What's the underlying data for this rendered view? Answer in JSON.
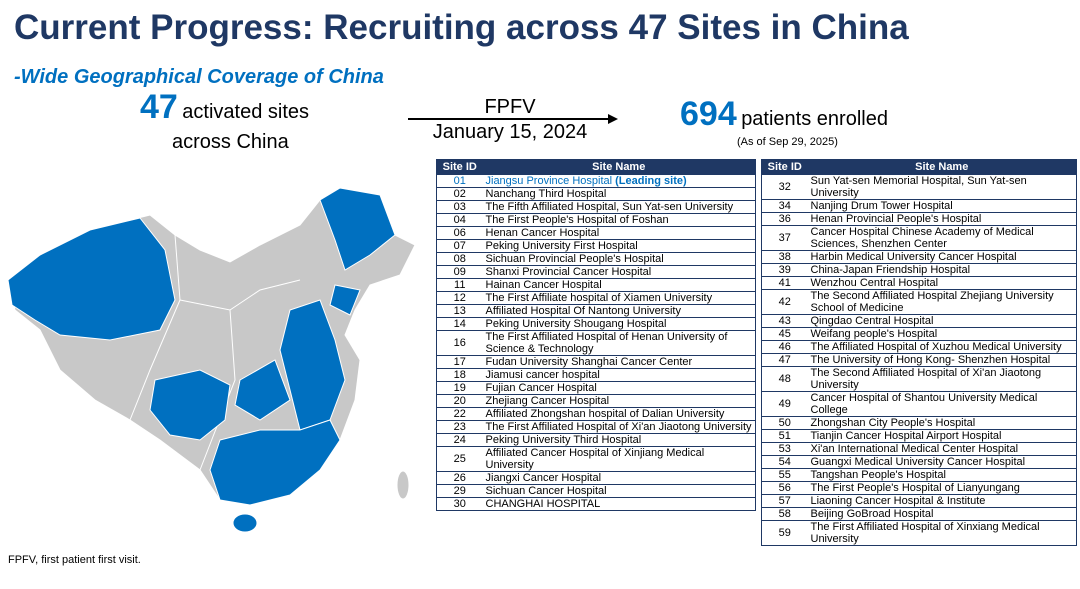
{
  "title": "Current Progress: Recruiting across 47 Sites in China",
  "subtitle": "-Wide Geographical Coverage of China",
  "sites": {
    "count": 47,
    "label": "activated sites",
    "sub": "across China"
  },
  "milestone": {
    "label": "FPFV",
    "date": "January 15, 2024"
  },
  "enrollment": {
    "count": 694,
    "label": "patients enrolled",
    "as_of": "(As of Sep 29, 2025)"
  },
  "tables": [
    {
      "columns": [
        "Site ID",
        "Site Name"
      ],
      "rows": [
        {
          "id": "01",
          "name": "Jiangsu Province Hospital",
          "note": "(Leading site)"
        },
        {
          "id": "02",
          "name": "Nanchang Third Hospital"
        },
        {
          "id": "03",
          "name": "The Fifth Affiliated Hospital, Sun Yat-sen University"
        },
        {
          "id": "04",
          "name": "The First People's Hospital of Foshan"
        },
        {
          "id": "06",
          "name": "Henan Cancer Hospital"
        },
        {
          "id": "07",
          "name": "Peking University First Hospital"
        },
        {
          "id": "08",
          "name": "Sichuan Provincial People's Hospital"
        },
        {
          "id": "09",
          "name": "Shanxi Provincial Cancer Hospital"
        },
        {
          "id": "11",
          "name": "Hainan Cancer Hospital"
        },
        {
          "id": "12",
          "name": "The First Affiliate hospital of Xiamen University"
        },
        {
          "id": "13",
          "name": "Affiliated Hospital Of Nantong University"
        },
        {
          "id": "14",
          "name": "Peking University Shougang Hospital"
        },
        {
          "id": "16",
          "name": "The First Affiliated Hospital of Henan University of Science & Technology"
        },
        {
          "id": "17",
          "name": "Fudan University Shanghai Cancer Center"
        },
        {
          "id": "18",
          "name": "Jiamusi cancer hospital"
        },
        {
          "id": "19",
          "name": "Fujian Cancer Hospital"
        },
        {
          "id": "20",
          "name": "Zhejiang Cancer Hospital"
        },
        {
          "id": "22",
          "name": "Affiliated Zhongshan hospital of Dalian University"
        },
        {
          "id": "23",
          "name": "The First Affiliated Hospital of Xi'an Jiaotong University"
        },
        {
          "id": "24",
          "name": "Peking University Third Hospital"
        },
        {
          "id": "25",
          "name": "Affiliated Cancer Hospital of Xinjiang Medical University"
        },
        {
          "id": "26",
          "name": "Jiangxi Cancer Hospital"
        },
        {
          "id": "29",
          "name": "Sichuan Cancer Hospital"
        },
        {
          "id": "30",
          "name": "CHANGHAI HOSPITAL"
        }
      ]
    },
    {
      "columns": [
        "Site ID",
        "Site Name"
      ],
      "rows": [
        {
          "id": "32",
          "name": "Sun Yat-sen Memorial Hospital, Sun Yat-sen University"
        },
        {
          "id": "34",
          "name": "Nanjing Drum Tower Hospital"
        },
        {
          "id": "36",
          "name": "Henan Provincial People's Hospital"
        },
        {
          "id": "37",
          "name": "Cancer Hospital Chinese Academy of Medical Sciences, Shenzhen Center"
        },
        {
          "id": "38",
          "name": "Harbin Medical University Cancer Hospital"
        },
        {
          "id": "39",
          "name": "China-Japan Friendship Hospital"
        },
        {
          "id": "41",
          "name": "Wenzhou Central Hospital"
        },
        {
          "id": "42",
          "name": "The Second Affiliated Hospital Zhejiang University School of Medicine"
        },
        {
          "id": "43",
          "name": "Qingdao Central Hospital"
        },
        {
          "id": "45",
          "name": "Weifang people's Hospital"
        },
        {
          "id": "46",
          "name": "The Affiliated Hospital of Xuzhou Medical University"
        },
        {
          "id": "47",
          "name": "The University of Hong Kong- Shenzhen Hospital"
        },
        {
          "id": "48",
          "name": "The Second Affiliated Hospital of Xi'an Jiaotong University"
        },
        {
          "id": "49",
          "name": "Cancer Hospital of Shantou University Medical College"
        },
        {
          "id": "50",
          "name": "Zhongshan City People's Hospital"
        },
        {
          "id": "51",
          "name": "Tianjin Cancer Hospital Airport Hospital"
        },
        {
          "id": "53",
          "name": "Xi'an International Medical Center Hospital"
        },
        {
          "id": "54",
          "name": "Guangxi Medical University Cancer Hospital"
        },
        {
          "id": "55",
          "name": "Tangshan People's Hospital"
        },
        {
          "id": "56",
          "name": "The First People's Hospital of Lianyungang"
        },
        {
          "id": "57",
          "name": "Liaoning Cancer Hospital & Institute"
        },
        {
          "id": "58",
          "name": "Beijing GoBroad Hospital"
        },
        {
          "id": "59",
          "name": "The First Affiliated Hospital of Xinxiang Medical University"
        }
      ]
    }
  ],
  "footnote": "FPFV, first patient first visit."
}
